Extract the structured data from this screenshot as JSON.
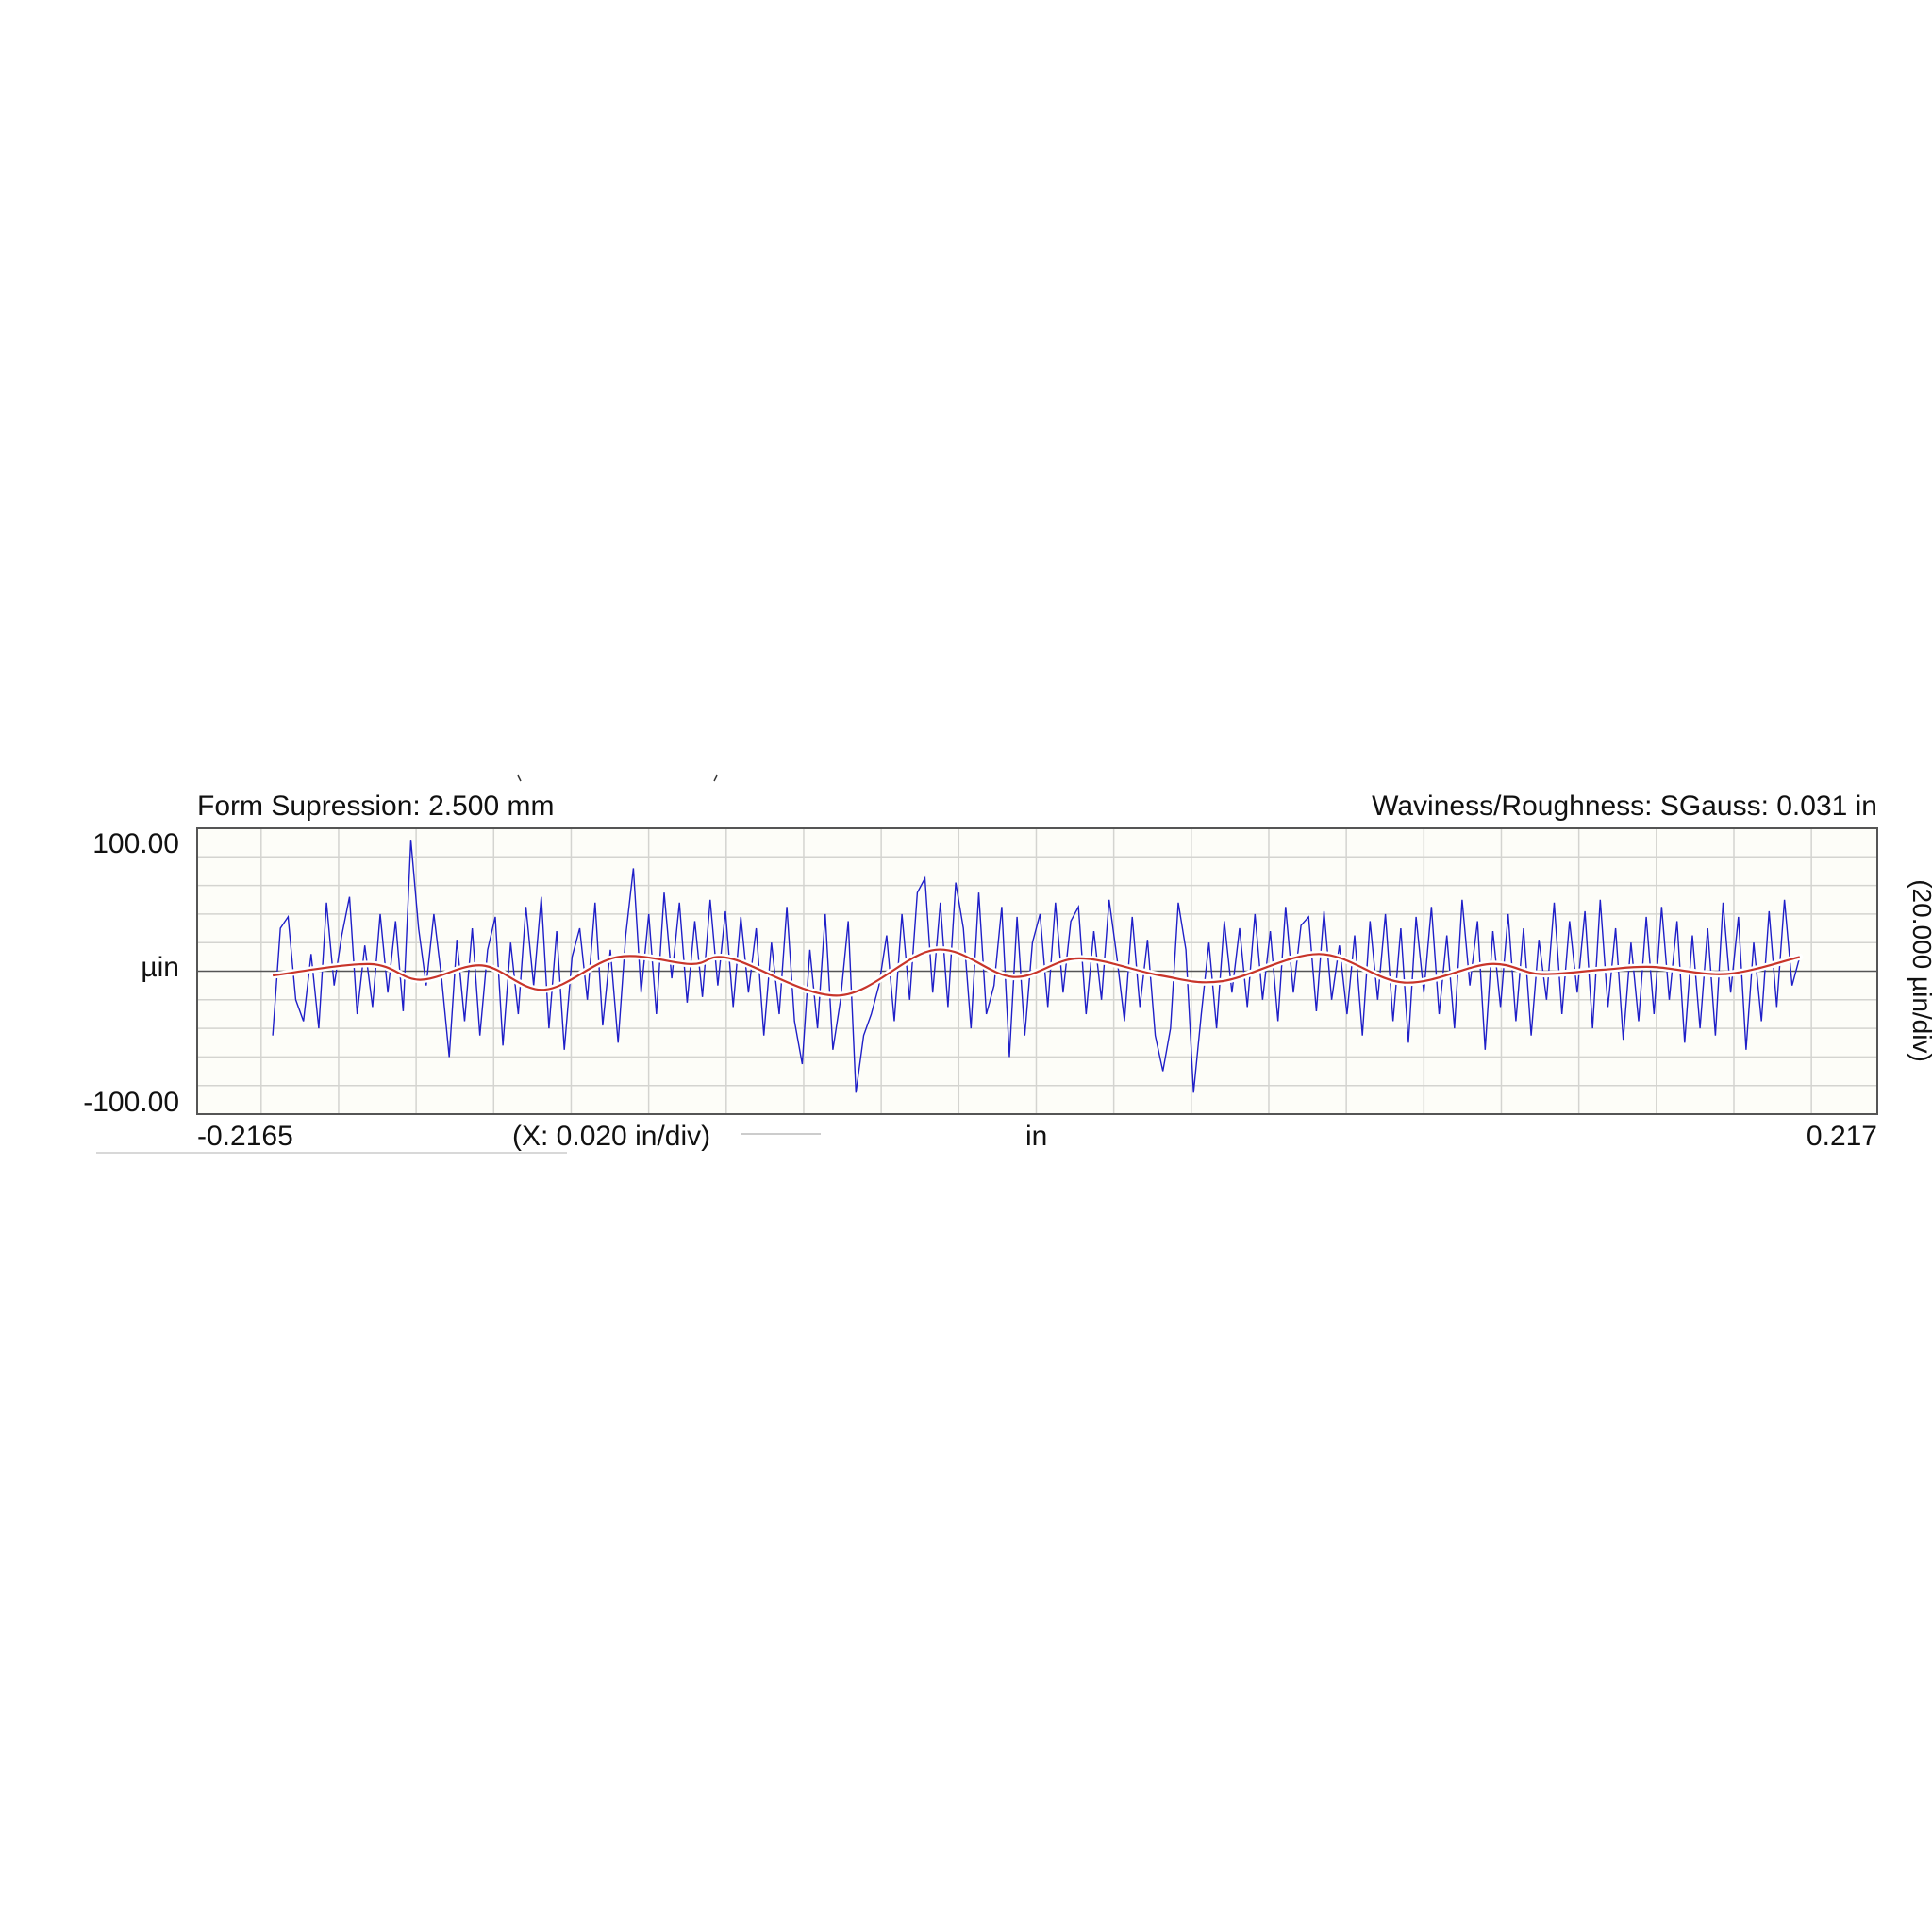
{
  "chart_data": {
    "type": "line",
    "title_left": "Form Supression: 2.500 mm",
    "title_right": "Waviness/Roughness: SGauss: 0.031 in",
    "ylabel": "µin",
    "y_scale_label": "(20.000 µin/div)",
    "x_scale_label": "(X: 0.020 in/div)",
    "xlabel": "in",
    "x_min_label": "-0.2165",
    "x_max_label": "0.217",
    "y_max_label": "100.00",
    "y_min_label": "-100.00",
    "xlim": [
      -0.2165,
      0.217
    ],
    "ylim": [
      -100,
      100
    ],
    "x_grid_step": 0.02,
    "y_grid_step": 20,
    "grid": true,
    "colors": {
      "roughness": "#1f1fc8",
      "waviness": "#c8352a",
      "background": "#fdfdf8",
      "grid": "#d4d4d0"
    },
    "series": [
      {
        "id": "roughness",
        "x_start": -0.197,
        "x_end": 0.197,
        "values": [
          -45,
          30,
          38,
          -20,
          -35,
          12,
          -40,
          48,
          -10,
          25,
          52,
          -30,
          18,
          -25,
          40,
          -15,
          35,
          -28,
          92,
          30,
          -10,
          40,
          -5,
          -60,
          22,
          -35,
          30,
          -45,
          15,
          38,
          -52,
          20,
          -30,
          45,
          -10,
          52,
          -40,
          28,
          -55,
          10,
          30,
          -20,
          48,
          -38,
          15,
          -50,
          25,
          72,
          -15,
          40,
          -30,
          55,
          -5,
          48,
          -22,
          35,
          -18,
          50,
          -10,
          42,
          -25,
          38,
          -15,
          30,
          -45,
          20,
          -30,
          45,
          -35,
          -65,
          15,
          -40,
          40,
          -55,
          -20,
          35,
          -85,
          -45,
          -30,
          -10,
          25,
          -35,
          40,
          -20,
          55,
          65,
          -15,
          48,
          -25,
          62,
          30,
          -40,
          55,
          -30,
          -10,
          45,
          -60,
          38,
          -45,
          20,
          40,
          -25,
          48,
          -15,
          35,
          45,
          -30,
          28,
          -20,
          50,
          10,
          -35,
          38,
          -25,
          22,
          -45,
          -70,
          -40,
          48,
          15,
          -85,
          -30,
          20,
          -40,
          35,
          -15,
          30,
          -25,
          40,
          -20,
          28,
          -35,
          45,
          -15,
          32,
          38,
          -28,
          42,
          -20,
          18,
          -30,
          25,
          -45,
          35,
          -20,
          40,
          -35,
          30,
          -50,
          38,
          -15,
          45,
          -30,
          25,
          -40,
          50,
          -10,
          35,
          -55,
          28,
          -25,
          40,
          -35,
          30,
          -45,
          22,
          -20,
          48,
          -30,
          35,
          -15,
          42,
          -40,
          50,
          -25,
          30,
          -48,
          20,
          -35,
          38,
          -30,
          45,
          -20,
          35,
          -50,
          25,
          -40,
          30,
          -45,
          48,
          -15,
          38,
          -55,
          20,
          -35,
          42,
          -25,
          50,
          -10,
          10
        ]
      },
      {
        "id": "waviness",
        "x": [
          -0.197,
          -0.172,
          -0.159,
          -0.143,
          -0.127,
          -0.108,
          -0.089,
          -0.079,
          -0.051,
          -0.026,
          -0.006,
          0.011,
          0.032,
          0.048,
          0.073,
          0.095,
          0.117,
          0.13,
          0.146,
          0.159,
          0.178,
          0.197
        ],
        "y": [
          -3,
          5,
          -6,
          4,
          -13,
          10,
          5,
          9,
          -17,
          15,
          -4,
          9,
          -3,
          -7,
          12,
          -8,
          5,
          -2,
          1,
          3,
          -2,
          10
        ]
      }
    ]
  }
}
